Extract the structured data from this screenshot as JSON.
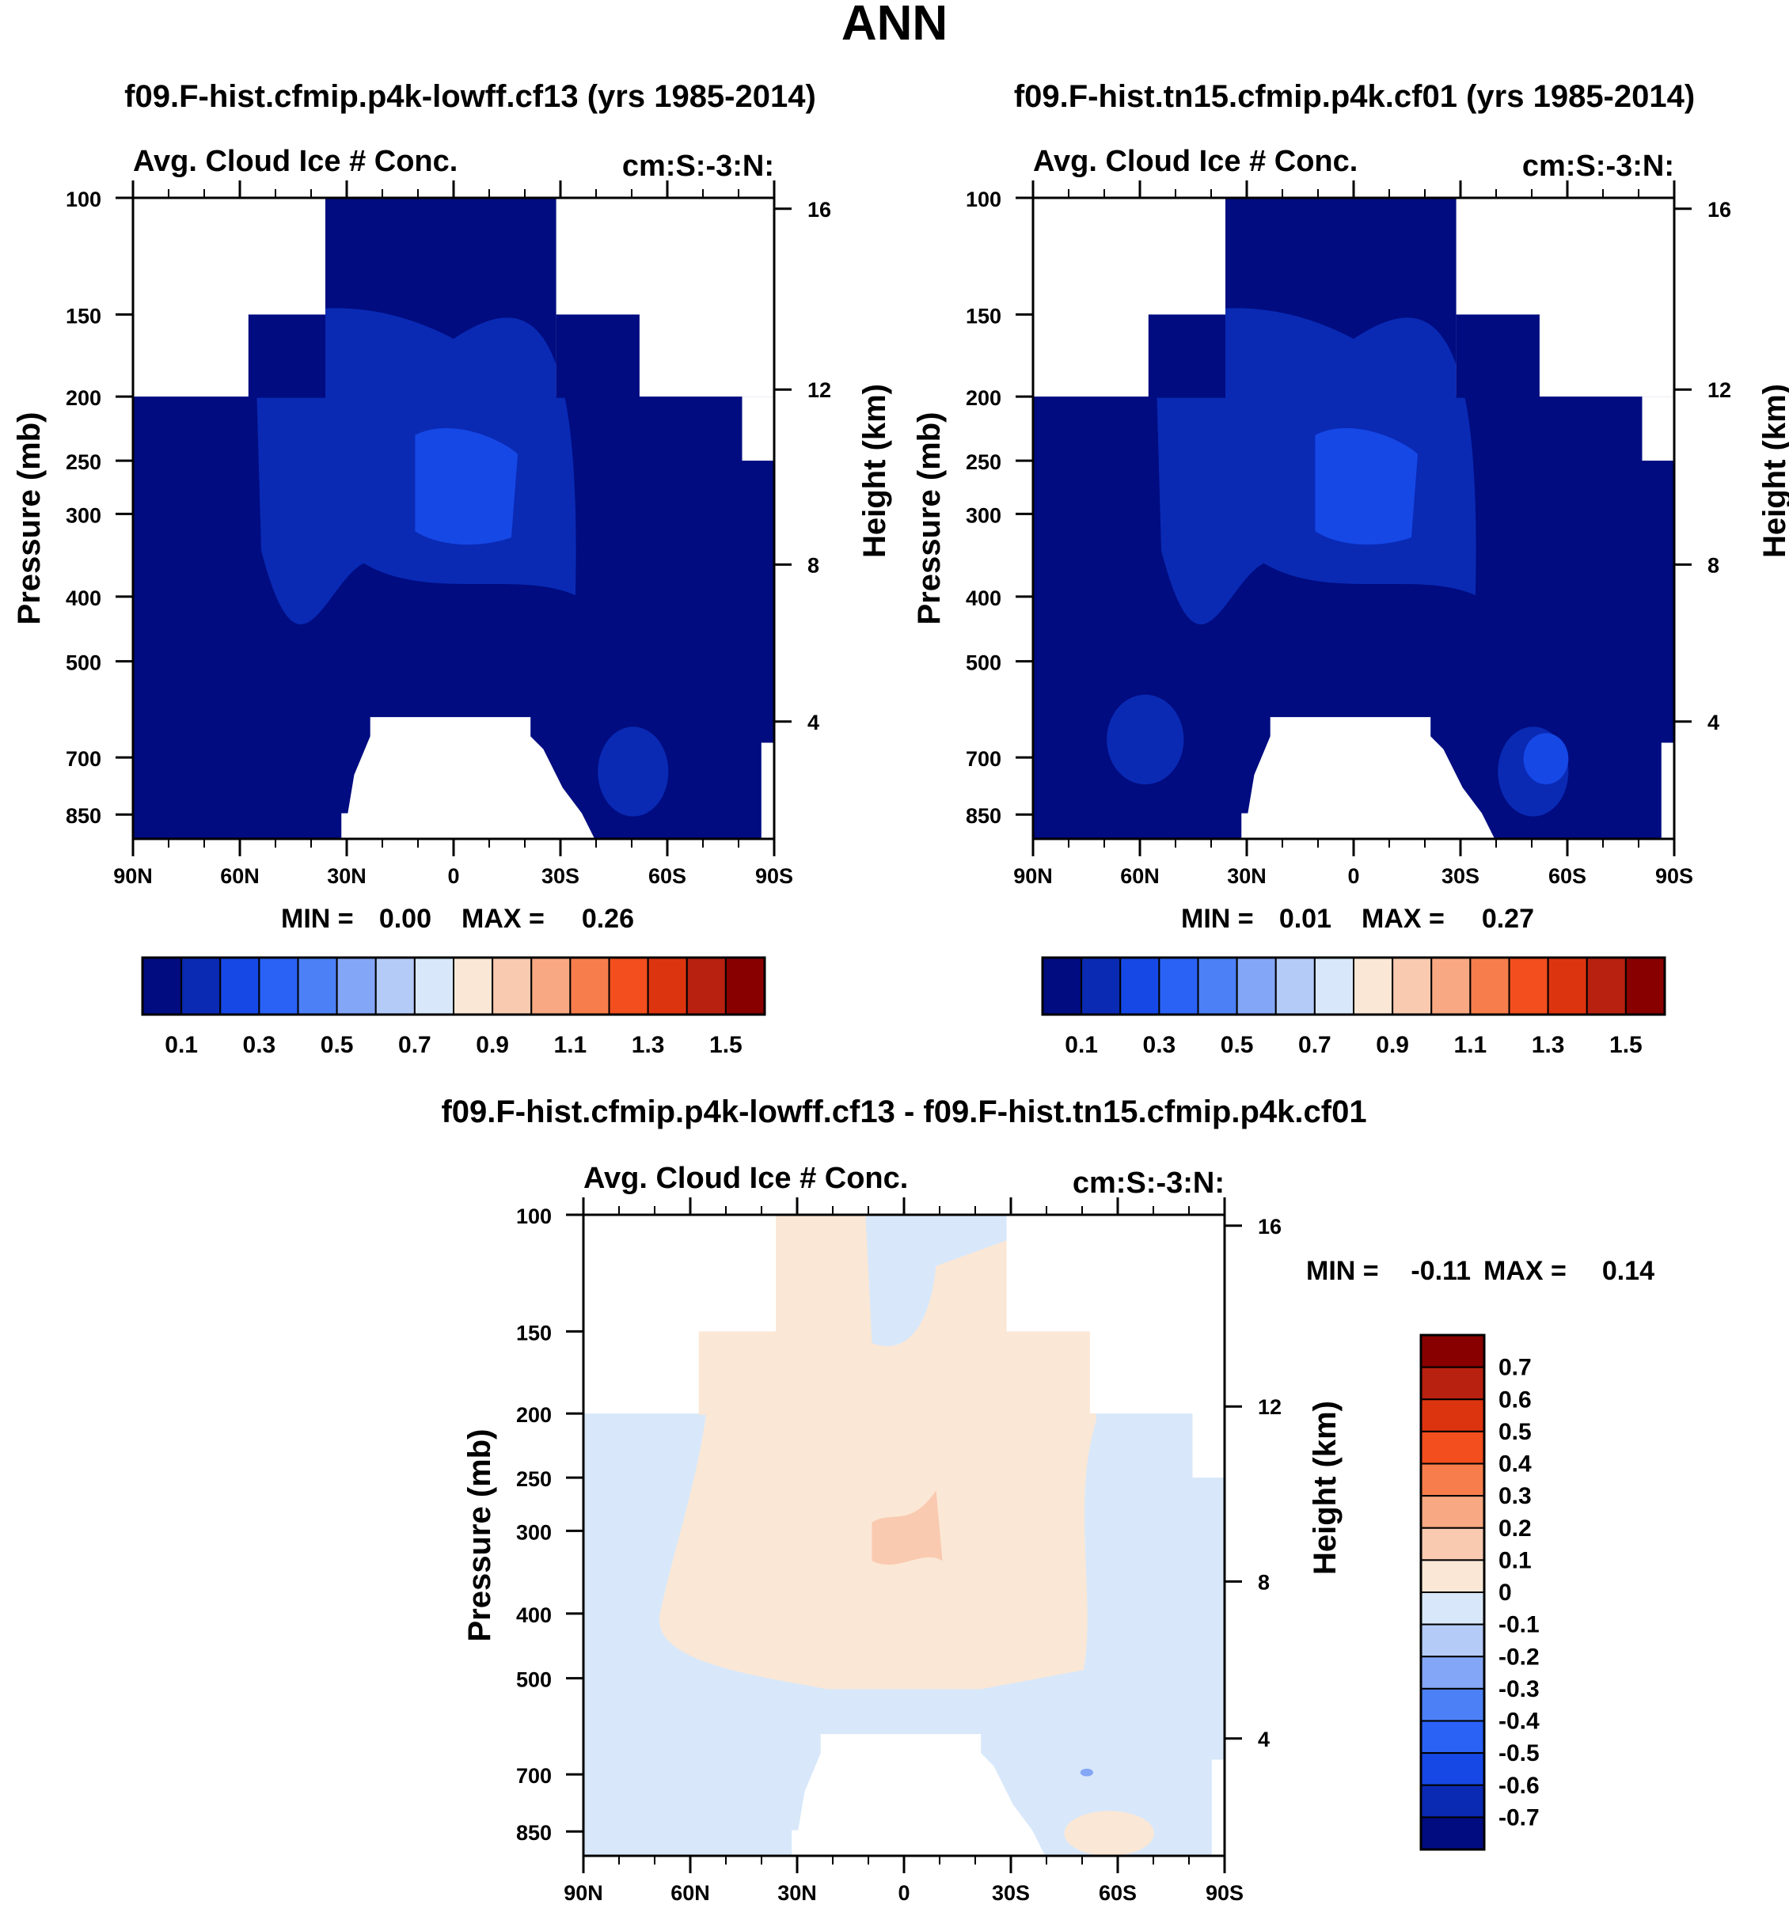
{
  "page_title": "ANN",
  "chart_data": [
    {
      "type": "heatmap",
      "title": "f09.F-hist.cfmip.p4k-lowff.cf13 (yrs 1985-2014)",
      "left_label": "Avg. Cloud Ice # Conc.",
      "right_label": "cm:S:-3:N:",
      "ylabel": "Pressure (mb)",
      "y2label": "Height (km)",
      "x_ticks": [
        "90N",
        "60N",
        "30N",
        "0",
        "30S",
        "60S",
        "90S"
      ],
      "y_ticks": [
        "100",
        "150",
        "200",
        "250",
        "300",
        "400",
        "500",
        "700",
        "850"
      ],
      "y2_ticks": [
        "16",
        "12",
        "8",
        "4"
      ],
      "min_label": "MIN =",
      "min_value": "0.00",
      "max_label": "MAX =",
      "max_value": "0.26",
      "colorbar_labels": [
        "0.1",
        "0.3",
        "0.5",
        "0.7",
        "0.9",
        "1.1",
        "1.3",
        "1.5"
      ]
    },
    {
      "type": "heatmap",
      "title": "f09.F-hist.tn15.cfmip.p4k.cf01 (yrs 1985-2014)",
      "left_label": "Avg. Cloud Ice # Conc.",
      "right_label": "cm:S:-3:N:",
      "ylabel": "Pressure (mb)",
      "y2label": "Height (km)",
      "x_ticks": [
        "90N",
        "60N",
        "30N",
        "0",
        "30S",
        "60S",
        "90S"
      ],
      "y_ticks": [
        "100",
        "150",
        "200",
        "250",
        "300",
        "400",
        "500",
        "700",
        "850"
      ],
      "y2_ticks": [
        "16",
        "12",
        "8",
        "4"
      ],
      "min_label": "MIN =",
      "min_value": "0.01",
      "max_label": "MAX =",
      "max_value": "0.27",
      "colorbar_labels": [
        "0.1",
        "0.3",
        "0.5",
        "0.7",
        "0.9",
        "1.1",
        "1.3",
        "1.5"
      ]
    },
    {
      "type": "heatmap",
      "title": "f09.F-hist.cfmip.p4k-lowff.cf13 - f09.F-hist.tn15.cfmip.p4k.cf01",
      "left_label": "Avg. Cloud Ice # Conc.",
      "right_label": "cm:S:-3:N:",
      "ylabel": "Pressure (mb)",
      "y2label": "Height (km)",
      "x_ticks": [
        "90N",
        "60N",
        "30N",
        "0",
        "30S",
        "60S",
        "90S"
      ],
      "y_ticks": [
        "100",
        "150",
        "200",
        "250",
        "300",
        "400",
        "500",
        "700",
        "850"
      ],
      "y2_ticks": [
        "16",
        "12",
        "8",
        "4"
      ],
      "min_label": "MIN =",
      "min_value": "-0.11",
      "max_label": "MAX =",
      "max_value": "0.14",
      "colorbar_labels": [
        "0.7",
        "0.6",
        "0.5",
        "0.4",
        "0.3",
        "0.2",
        "0.1",
        "0",
        "-0.1",
        "-0.2",
        "-0.3",
        "-0.4",
        "-0.5",
        "-0.6",
        "-0.7"
      ]
    }
  ],
  "colors": {
    "palette": [
      "#000c80",
      "#0a2ab4",
      "#1648e6",
      "#2a62f6",
      "#4c80f6",
      "#84a6f6",
      "#b4cbf8",
      "#d8e8fa",
      "#fbe7d5",
      "#f9cab0",
      "#f8a882",
      "#f77e4c",
      "#f24e1e",
      "#dd3410",
      "#b82010",
      "#880000"
    ],
    "field_base": "#000c80",
    "field_level2": "#0a2ab4",
    "field_level3": "#1648e6",
    "diff_positive": "#fbe7d5",
    "diff_negative": "#d8e8fa",
    "diff_strong_positive": "#f9cab0",
    "diff_strong_negative": "#84a6f6",
    "masked": "#ffffff"
  }
}
